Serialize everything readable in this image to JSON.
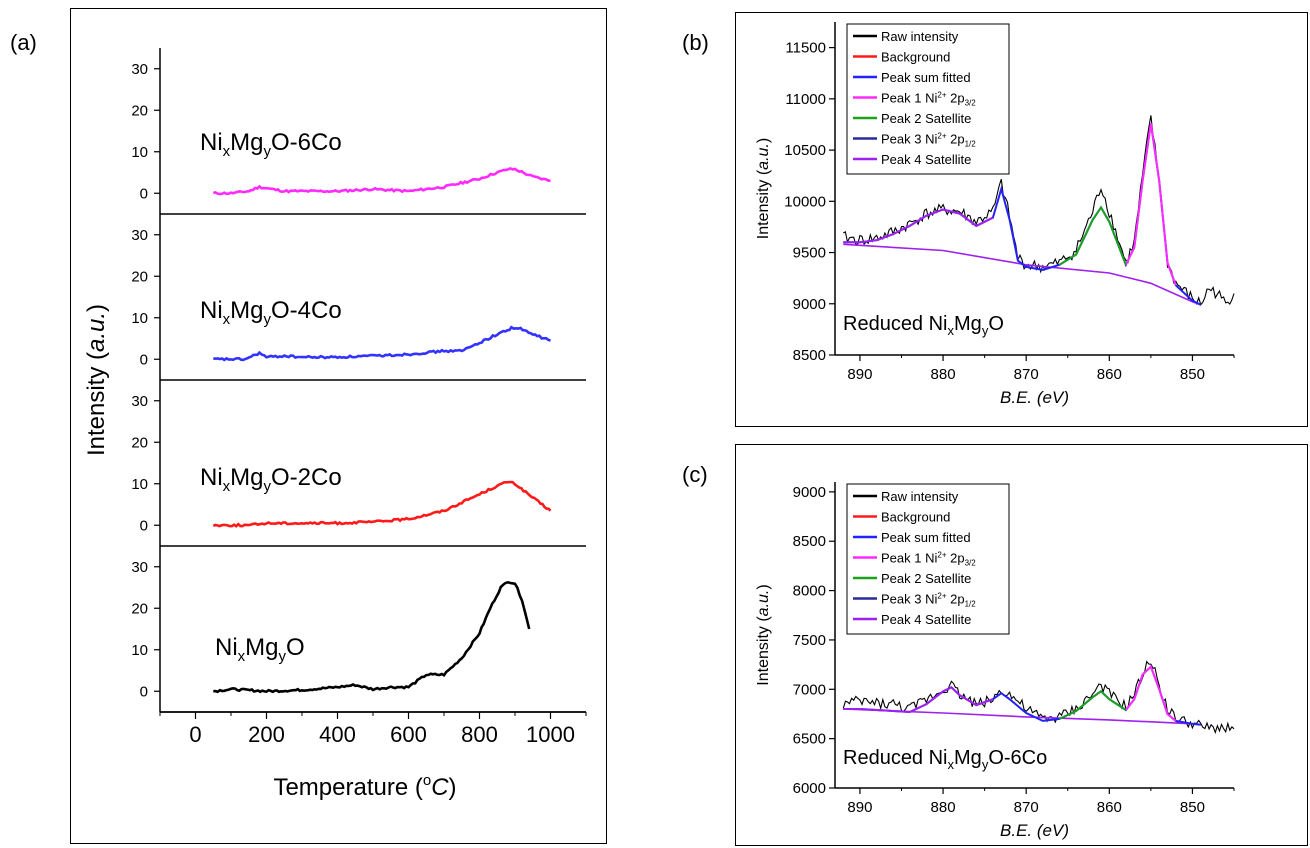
{
  "panel_labels": {
    "a": "(a)",
    "b": "(b)",
    "c": "(c)"
  },
  "chart_data": [
    {
      "type": "line",
      "panel": "(a)",
      "xlabel_text": "Temperature (",
      "xlabel_sup": "o",
      "xlabel_unit": "C",
      "xlabel_close": ")",
      "ylabel_text": "Intensity (",
      "ylabel_italic": "a.u.",
      "ylabel_close": ")",
      "xlim": [
        -100,
        1100
      ],
      "ylim": [
        -5,
        35
      ],
      "xticks": [
        0,
        200,
        400,
        600,
        800,
        1000
      ],
      "yticks": [
        0,
        10,
        20,
        30
      ],
      "series": [
        {
          "name": "NixMgyO-6Co",
          "label_parts": [
            "Ni",
            "x",
            "Mg",
            "y",
            "O-6Co"
          ],
          "color": "#ff2aff",
          "x": [
            50,
            100,
            150,
            180,
            250,
            300,
            400,
            500,
            600,
            700,
            800,
            850,
            880,
            900,
            950,
            1000
          ],
          "y": [
            0,
            0,
            0.5,
            1.5,
            0.5,
            0.5,
            0.5,
            1,
            0.5,
            1.5,
            3.5,
            5,
            5.8,
            5.8,
            4,
            3
          ]
        },
        {
          "name": "NixMgyO-4Co",
          "label_parts": [
            "Ni",
            "x",
            "Mg",
            "y",
            "O-4Co"
          ],
          "color": "#3333ff",
          "x": [
            50,
            100,
            140,
            180,
            200,
            250,
            300,
            400,
            500,
            600,
            700,
            750,
            800,
            850,
            890,
            910,
            950,
            1000
          ],
          "y": [
            0,
            0,
            0,
            1.5,
            0.5,
            0.8,
            0.5,
            0.5,
            0.8,
            1.2,
            2,
            2,
            4,
            6,
            7.5,
            7.5,
            6,
            4.5
          ]
        },
        {
          "name": "NixMgyO-2Co",
          "label_parts": [
            "Ni",
            "x",
            "Mg",
            "y",
            "O-2Co"
          ],
          "color": "#ff1a1a",
          "x": [
            50,
            150,
            200,
            300,
            400,
            500,
            600,
            650,
            700,
            750,
            800,
            850,
            880,
            900,
            930,
            960,
            1000
          ],
          "y": [
            0,
            0,
            0.5,
            0.5,
            0.5,
            0.8,
            1.5,
            2.5,
            3.5,
            5.5,
            7.5,
            9.5,
            10.5,
            10,
            8,
            6,
            3.5
          ]
        },
        {
          "name": "NixMgyO",
          "label_parts": [
            "Ni",
            "x",
            "Mg",
            "y",
            "O"
          ],
          "color": "#000000",
          "x": [
            50,
            100,
            200,
            300,
            400,
            450,
            500,
            550,
            600,
            650,
            700,
            750,
            800,
            830,
            860,
            880,
            900,
            920,
            940
          ],
          "y": [
            0,
            0.5,
            0,
            0.3,
            1,
            1.5,
            0.5,
            1,
            1,
            4,
            4,
            8,
            14,
            20,
            25,
            26.5,
            26,
            22,
            15
          ]
        }
      ]
    },
    {
      "type": "line",
      "panel": "(b)",
      "annotation_parts": [
        "Reduced Ni",
        "x",
        "Mg",
        "y",
        "O"
      ],
      "xlabel": "B.E. (eV)",
      "ylabel_text": "Intensity (",
      "ylabel_italic": "a.u.",
      "ylabel_close": ")",
      "xlim": [
        893,
        845
      ],
      "ylim": [
        8500,
        11750
      ],
      "xticks": [
        890,
        880,
        870,
        860,
        850
      ],
      "yticks": [
        8500,
        9000,
        9500,
        10000,
        10500,
        11000,
        11500
      ],
      "legend": [
        {
          "label": "Raw intensity",
          "color": "#000000"
        },
        {
          "label": "Background",
          "color": "#ff1a1a"
        },
        {
          "label": "Peak sum fitted",
          "color": "#2222ff"
        },
        {
          "label": "Peak 1 Ni",
          "sup": "2+",
          "rest": " 2p",
          "sub": "3/2",
          "color": "#ff2aff"
        },
        {
          "label": "Peak 2 Satellite",
          "color": "#1aa31a"
        },
        {
          "label": "Peak 3 Ni",
          "sup": "2+",
          "rest": " 2p",
          "sub": "1/2",
          "color": "#2a2a9a"
        },
        {
          "label": "Peak 4 Satellite",
          "color": "#a020f0"
        }
      ],
      "raw": {
        "x": [
          892,
          890,
          888,
          886,
          884,
          882,
          880,
          878,
          876,
          874,
          873,
          872,
          871,
          870,
          868,
          866,
          864,
          862,
          861,
          860,
          858,
          857,
          856,
          855,
          854,
          853,
          852,
          850,
          849,
          848,
          847,
          846,
          845
        ],
        "y": [
          9650,
          9620,
          9640,
          9700,
          9780,
          9880,
          9920,
          9900,
          9800,
          9900,
          10180,
          9850,
          9450,
          9380,
          9360,
          9400,
          9520,
          9900,
          10150,
          9900,
          9400,
          9600,
          10250,
          10820,
          10200,
          9400,
          9200,
          9050,
          9000,
          9150,
          9100,
          9000,
          9100
        ]
      },
      "fit": {
        "x": [
          892,
          890,
          888,
          886,
          884,
          882,
          880,
          878,
          876,
          874,
          873,
          872,
          871,
          870,
          868,
          866,
          864,
          862,
          861,
          860,
          858,
          857,
          856,
          855,
          854,
          853,
          852,
          850,
          849
        ],
        "y": [
          9600,
          9600,
          9620,
          9680,
          9760,
          9860,
          9920,
          9880,
          9760,
          9840,
          10120,
          9820,
          9420,
          9360,
          9330,
          9380,
          9480,
          9820,
          9940,
          9800,
          9380,
          9550,
          10200,
          10760,
          10200,
          9400,
          9180,
          9030,
          8990
        ]
      },
      "background": {
        "x": [
          892,
          880,
          870,
          860,
          855,
          850,
          849
        ],
        "y": [
          9580,
          9520,
          9380,
          9300,
          9200,
          9020,
          8990
        ]
      }
    },
    {
      "type": "line",
      "panel": "(c)",
      "annotation_parts": [
        "Reduced Ni",
        "x",
        "Mg",
        "y",
        "O-6Co"
      ],
      "xlabel": "B.E. (eV)",
      "ylabel_text": "Intensity (",
      "ylabel_italic": "a.u.",
      "ylabel_close": ")",
      "xlim": [
        893,
        845
      ],
      "ylim": [
        6000,
        9100
      ],
      "xticks": [
        890,
        880,
        870,
        860,
        850
      ],
      "yticks": [
        6000,
        6500,
        7000,
        7500,
        8000,
        8500,
        9000
      ],
      "legend": [
        {
          "label": "Raw intensity",
          "color": "#000000"
        },
        {
          "label": "Background",
          "color": "#ff1a1a"
        },
        {
          "label": "Peak sum fitted",
          "color": "#2222ff"
        },
        {
          "label": "Peak 1 Ni",
          "sup": "2+",
          "rest": " 2p",
          "sub": "3/2",
          "color": "#ff2aff"
        },
        {
          "label": "Peak 2 Satellite",
          "color": "#1aa31a"
        },
        {
          "label": "Peak 3 Ni",
          "sup": "2+",
          "rest": " 2p",
          "sub": "1/2",
          "color": "#2a2a9a"
        },
        {
          "label": "Peak 4 Satellite",
          "color": "#a020f0"
        }
      ],
      "raw": {
        "x": [
          892,
          890,
          888,
          886,
          884,
          882,
          880,
          879,
          878,
          876,
          874,
          873,
          872,
          870,
          868,
          866,
          864,
          862,
          861,
          860,
          858,
          857,
          856,
          855,
          854,
          853,
          852,
          850,
          848,
          846,
          845
        ],
        "y": [
          6850,
          6880,
          6860,
          6850,
          6800,
          6900,
          7000,
          7050,
          6950,
          6850,
          6900,
          7000,
          6950,
          6800,
          6700,
          6720,
          6800,
          6950,
          7050,
          6950,
          6820,
          6950,
          7150,
          7300,
          7050,
          6800,
          6700,
          6650,
          6600,
          6620,
          6600
        ]
      },
      "fit": {
        "x": [
          892,
          890,
          888,
          886,
          884,
          882,
          880,
          879,
          878,
          876,
          874,
          873,
          872,
          870,
          868,
          866,
          864,
          862,
          861,
          860,
          858,
          857,
          856,
          855,
          854,
          853,
          852,
          850,
          849
        ],
        "y": [
          6800,
          6800,
          6790,
          6780,
          6770,
          6850,
          6980,
          7020,
          6940,
          6840,
          6900,
          6960,
          6900,
          6760,
          6680,
          6700,
          6780,
          6920,
          6980,
          6900,
          6790,
          6900,
          7150,
          7230,
          7000,
          6750,
          6680,
          6650,
          6640
        ]
      },
      "background": {
        "x": [
          892,
          880,
          870,
          860,
          850,
          849
        ],
        "y": [
          6800,
          6760,
          6720,
          6690,
          6650,
          6640
        ]
      }
    }
  ]
}
